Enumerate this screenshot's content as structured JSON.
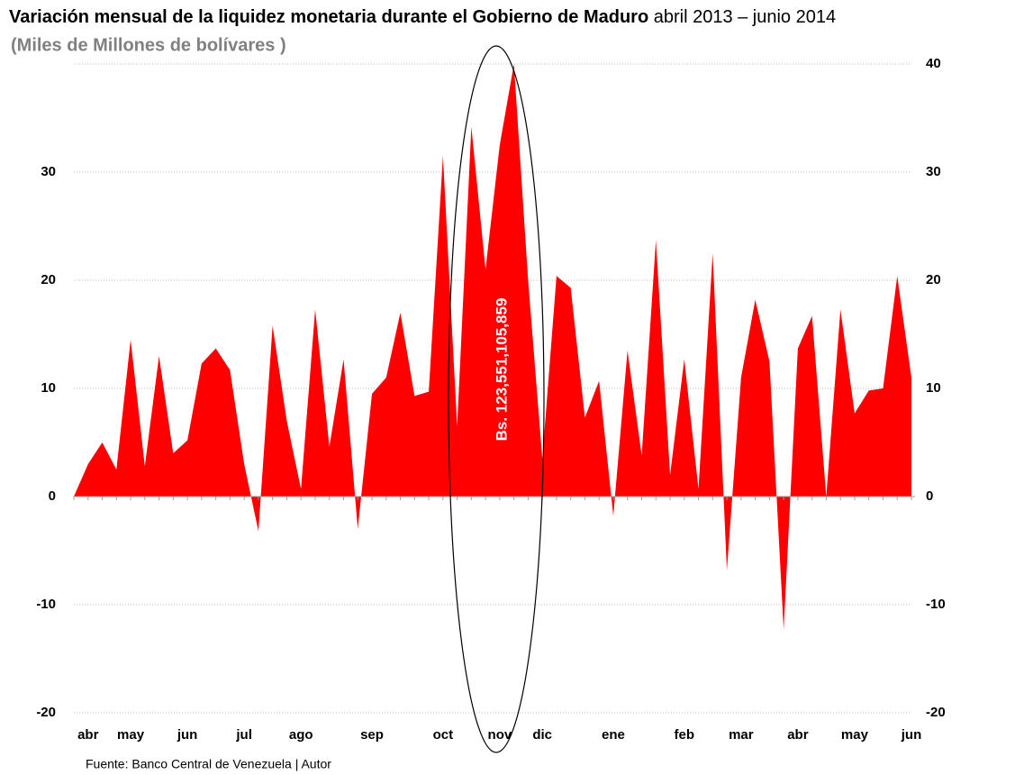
{
  "chart_data": {
    "type": "area",
    "title": "Variación mensual  de la liquidez monetaria durante el Gobierno de Maduro",
    "title_period": "abril 2013 – junio 2014",
    "subtitle": "(Miles de Millones de bolívares )",
    "source": "Fuente: Banco Central de Venezuela | Autor",
    "annotation": "Bs. 123,551,105,859",
    "color": "#ff0000",
    "grid": true,
    "ylim": [
      -20,
      40
    ],
    "yticks": [
      -20,
      -10,
      0,
      10,
      20,
      30
    ],
    "y2lim": [
      -20,
      40
    ],
    "y2ticks": [
      -20,
      -10,
      0,
      10,
      20,
      30,
      40
    ],
    "categories": [
      null,
      "abr",
      null,
      null,
      "may",
      null,
      null,
      null,
      "jun",
      null,
      null,
      null,
      "jul",
      null,
      null,
      null,
      "ago",
      null,
      null,
      null,
      null,
      "sep",
      null,
      null,
      null,
      null,
      "oct",
      null,
      null,
      null,
      "nov",
      null,
      null,
      "dic",
      null,
      null,
      null,
      null,
      "ene",
      null,
      null,
      null,
      null,
      "feb",
      null,
      null,
      null,
      "mar",
      null,
      null,
      null,
      "abr",
      null,
      null,
      null,
      "may",
      null,
      null,
      null,
      "jun"
    ],
    "values": [
      0,
      3,
      5,
      2.5,
      14.5,
      2.8,
      13,
      4,
      5.2,
      12.3,
      13.7,
      11.7,
      3,
      -3.2,
      15.8,
      7,
      0.7,
      17.3,
      4.6,
      12.7,
      -3,
      9.5,
      11,
      17,
      9.3,
      9.7,
      31.5,
      6.5,
      34.2,
      21,
      32.5,
      40,
      20,
      3.5,
      20.4,
      19.3,
      7.3,
      10.7,
      -1.8,
      13.5,
      3.8,
      23.7,
      2,
      12.7,
      0.7,
      22.5,
      -6.8,
      11,
      18.2,
      12.5,
      -12.3,
      13.7,
      16.7,
      0,
      17.3,
      7.7,
      9.8,
      10,
      20.4,
      11
    ]
  }
}
